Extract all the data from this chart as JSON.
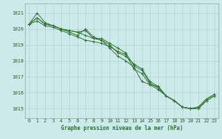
{
  "title": "Graphe pression niveau de la mer (hPa)",
  "background_color": "#cdeaea",
  "grid_color": "#b0d0d0",
  "line_color": "#2d6e2d",
  "x_ticks": [
    0,
    1,
    2,
    3,
    4,
    5,
    6,
    7,
    8,
    9,
    10,
    11,
    12,
    13,
    14,
    15,
    16,
    17,
    18,
    19,
    20,
    21,
    22,
    23
  ],
  "y_ticks": [
    1015,
    1016,
    1017,
    1018,
    1019,
    1020,
    1021
  ],
  "ylim": [
    1014.4,
    1021.6
  ],
  "xlim": [
    -0.5,
    23.5
  ],
  "series": [
    [
      1020.3,
      1020.7,
      1020.3,
      1020.2,
      1020.0,
      1019.9,
      1019.8,
      1019.9,
      1019.4,
      1019.3,
      1019.0,
      1018.5,
      1018.3,
      1017.8,
      1017.5,
      1016.7,
      1016.4,
      1015.8,
      1015.5,
      1015.1,
      1015.0,
      1015.1,
      1015.6,
      1015.9
    ],
    [
      1020.3,
      1021.0,
      1020.4,
      1020.2,
      1020.0,
      1019.8,
      1019.6,
      1020.0,
      1019.5,
      1019.3,
      1018.8,
      1018.3,
      1018.0,
      1017.6,
      1016.7,
      1016.5,
      1016.4,
      1015.8,
      1015.5,
      1015.1,
      1015.0,
      1015.1,
      1015.6,
      1015.9
    ],
    [
      1020.3,
      1020.7,
      1020.3,
      1020.2,
      1020.0,
      1019.9,
      1019.8,
      1019.6,
      1019.4,
      1019.4,
      1019.1,
      1018.8,
      1018.5,
      1017.7,
      1017.4,
      1016.6,
      1016.3,
      1015.8,
      1015.5,
      1015.1,
      1015.0,
      1015.0,
      1015.5,
      1015.8
    ],
    [
      1020.3,
      1020.5,
      1020.2,
      1020.1,
      1019.9,
      1019.7,
      1019.5,
      1019.3,
      1019.2,
      1019.1,
      1018.9,
      1018.6,
      1018.4,
      1017.5,
      1017.2,
      1016.5,
      1016.2,
      1015.8,
      1015.5,
      1015.1,
      1015.0,
      1015.0,
      1015.5,
      1015.8
    ]
  ],
  "figsize": [
    3.2,
    2.0
  ],
  "dpi": 100
}
